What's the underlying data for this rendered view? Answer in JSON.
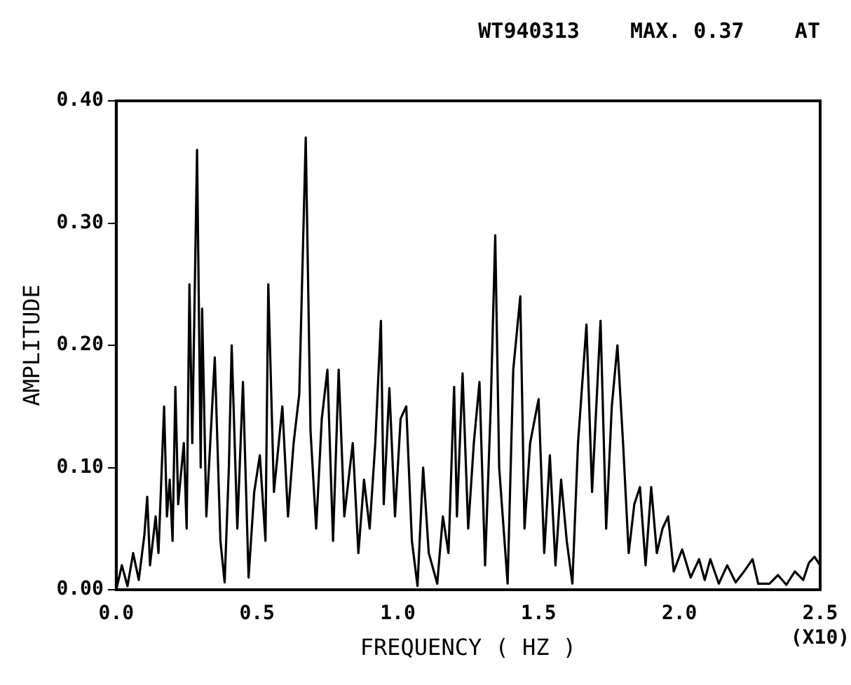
{
  "chart_data": {
    "type": "line",
    "title": "WT940313    MAX. 0.37    AT",
    "xlabel": "FREQUENCY ( HZ )",
    "ylabel": "AMPLITUDE",
    "annotations": [
      "(X10)"
    ],
    "xlim": [
      0,
      2.5
    ],
    "ylim": [
      0,
      0.4
    ],
    "xticks": [
      {
        "value": 0,
        "label": "0.0"
      },
      {
        "value": 0.5,
        "label": "0.5"
      },
      {
        "value": 1,
        "label": "1.0"
      },
      {
        "value": 1.5,
        "label": "1.5"
      },
      {
        "value": 2,
        "label": "2.0"
      },
      {
        "value": 2.5,
        "label": "2.5"
      }
    ],
    "yticks": [
      {
        "value": 0,
        "label": "0.00"
      },
      {
        "value": 0.1,
        "label": "0.10"
      },
      {
        "value": 0.2,
        "label": "0.20"
      },
      {
        "value": 0.3,
        "label": "0.30"
      },
      {
        "value": 0.4,
        "label": "0.40"
      }
    ],
    "marker": "none",
    "line_style": "solid",
    "series": [
      {
        "color": "#000000",
        "x": [
          0,
          0.02,
          0.04,
          0.06,
          0.08,
          0.1,
          0.11,
          0.12,
          0.14,
          0.15,
          0.17,
          0.18,
          0.19,
          0.2,
          0.21,
          0.22,
          0.24,
          0.25,
          0.26,
          0.27,
          0.287,
          0.3,
          0.305,
          0.32,
          0.35,
          0.37,
          0.385,
          0.4,
          0.41,
          0.43,
          0.45,
          0.47,
          0.49,
          0.51,
          0.53,
          0.54,
          0.56,
          0.59,
          0.61,
          0.63,
          0.65,
          0.673,
          0.69,
          0.71,
          0.73,
          0.75,
          0.77,
          0.79,
          0.81,
          0.84,
          0.86,
          0.88,
          0.9,
          0.92,
          0.94,
          0.95,
          0.97,
          0.99,
          1.01,
          1.03,
          1.05,
          1.07,
          1.09,
          1.11,
          1.14,
          1.16,
          1.18,
          1.2,
          1.21,
          1.23,
          1.25,
          1.27,
          1.29,
          1.31,
          1.33,
          1.346,
          1.36,
          1.39,
          1.41,
          1.435,
          1.45,
          1.47,
          1.5,
          1.52,
          1.54,
          1.56,
          1.58,
          1.6,
          1.62,
          1.64,
          1.67,
          1.69,
          1.72,
          1.74,
          1.76,
          1.78,
          1.8,
          1.82,
          1.84,
          1.86,
          1.88,
          1.9,
          1.92,
          1.94,
          1.96,
          1.98,
          2.01,
          2.04,
          2.07,
          2.09,
          2.11,
          2.14,
          2.17,
          2.2,
          2.23,
          2.26,
          2.28,
          2.32,
          2.35,
          2.38,
          2.41,
          2.44,
          2.46,
          2.48,
          2.5
        ],
        "values": [
          0,
          0.02,
          0.003,
          0.03,
          0.008,
          0.045,
          0.076,
          0.02,
          0.06,
          0.03,
          0.15,
          0.06,
          0.09,
          0.04,
          0.166,
          0.07,
          0.12,
          0.05,
          0.25,
          0.12,
          0.36,
          0.1,
          0.23,
          0.06,
          0.19,
          0.04,
          0.006,
          0.1,
          0.2,
          0.05,
          0.17,
          0.01,
          0.08,
          0.11,
          0.04,
          0.25,
          0.08,
          0.15,
          0.06,
          0.12,
          0.16,
          0.37,
          0.13,
          0.05,
          0.14,
          0.18,
          0.04,
          0.18,
          0.06,
          0.12,
          0.03,
          0.09,
          0.05,
          0.12,
          0.22,
          0.07,
          0.165,
          0.06,
          0.14,
          0.15,
          0.04,
          0.003,
          0.1,
          0.03,
          0.005,
          0.06,
          0.03,
          0.166,
          0.06,
          0.177,
          0.05,
          0.12,
          0.17,
          0.02,
          0.15,
          0.29,
          0.1,
          0.005,
          0.18,
          0.24,
          0.05,
          0.12,
          0.156,
          0.03,
          0.11,
          0.02,
          0.09,
          0.04,
          0.005,
          0.12,
          0.217,
          0.08,
          0.22,
          0.05,
          0.15,
          0.2,
          0.12,
          0.03,
          0.07,
          0.084,
          0.02,
          0.084,
          0.03,
          0.05,
          0.06,
          0.015,
          0.033,
          0.01,
          0.025,
          0.008,
          0.025,
          0.005,
          0.02,
          0.006,
          0.015,
          0.025,
          0.005,
          0.005,
          0.012,
          0.004,
          0.015,
          0.008,
          0.022,
          0.027,
          0.02
        ]
      }
    ]
  }
}
